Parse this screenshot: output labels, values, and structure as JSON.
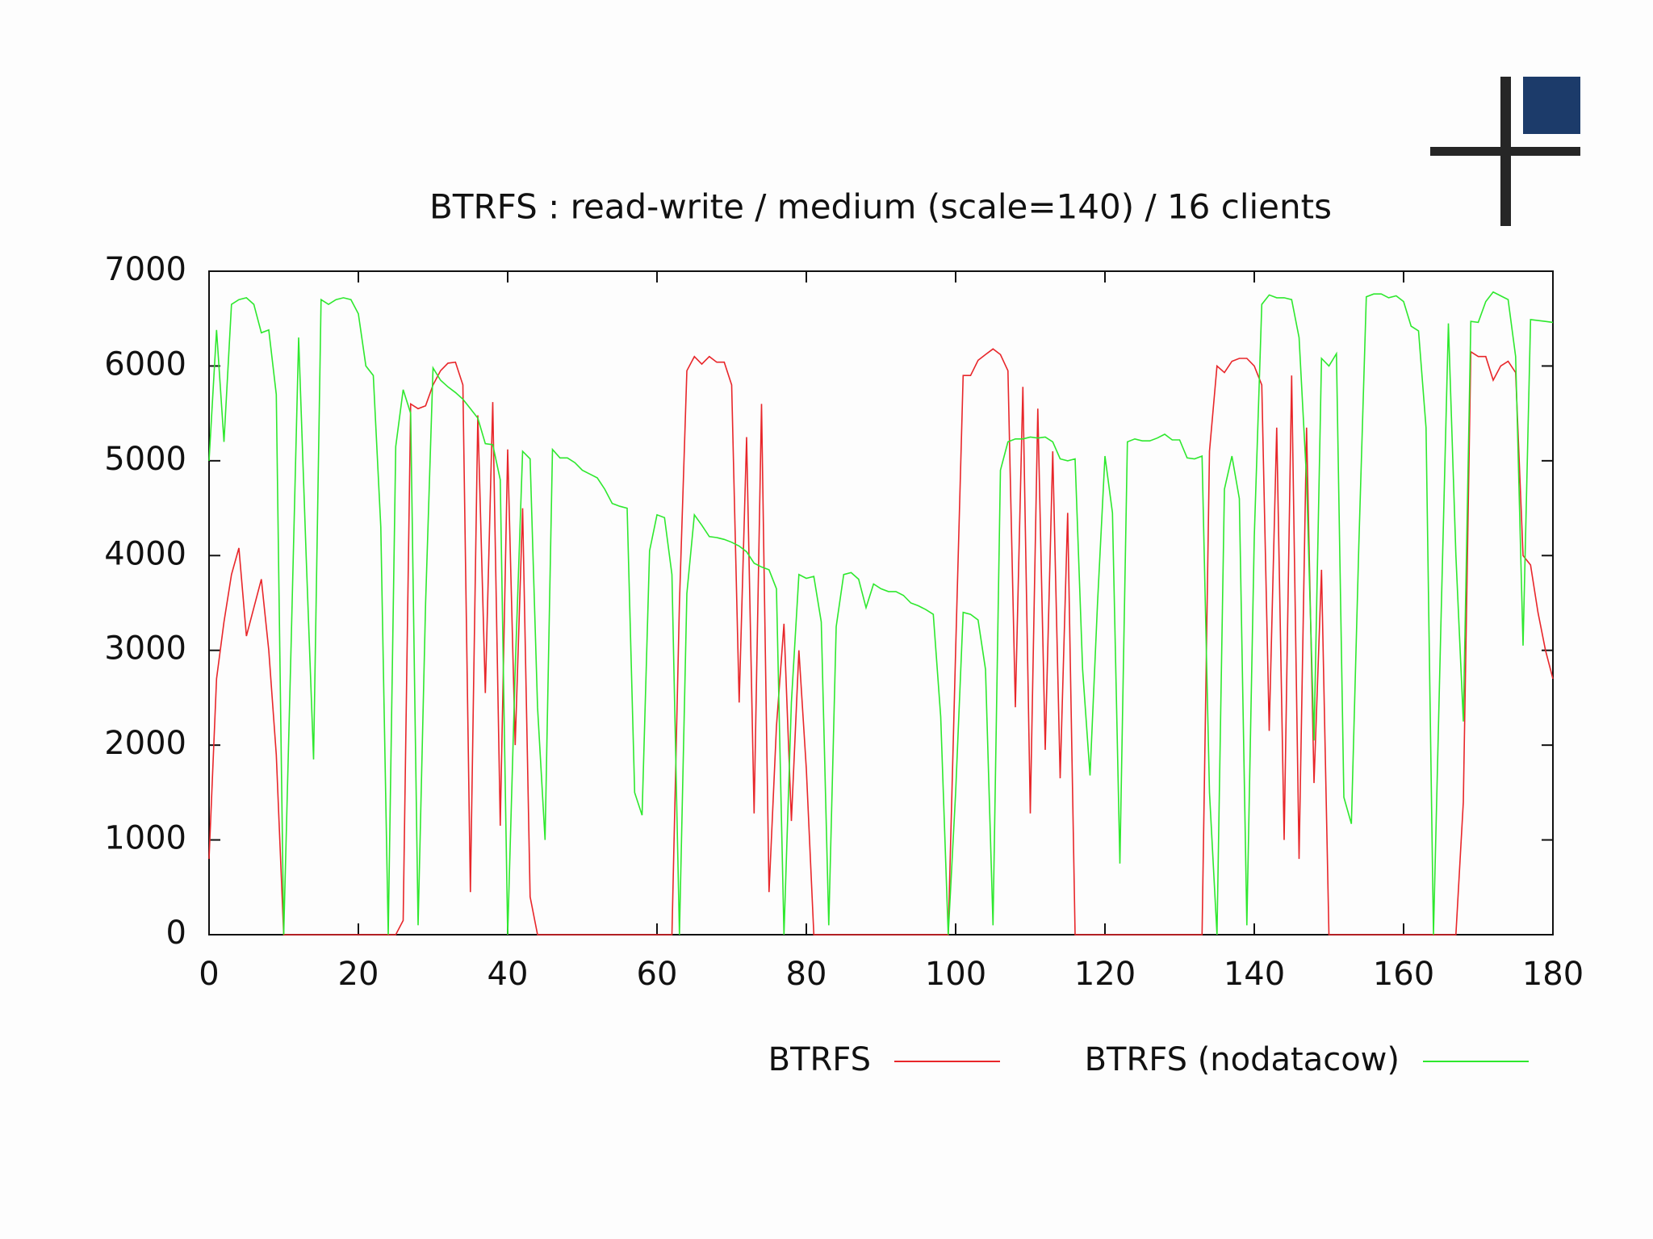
{
  "chart_data": {
    "type": "line",
    "title": "BTRFS : read-write / medium (scale=140) / 16 clients",
    "x": [
      0,
      1,
      2,
      3,
      4,
      5,
      6,
      7,
      8,
      9,
      10,
      11,
      12,
      13,
      14,
      15,
      16,
      17,
      18,
      19,
      20,
      21,
      22,
      23,
      24,
      25,
      26,
      27,
      28,
      29,
      30,
      31,
      32,
      33,
      34,
      35,
      36,
      37,
      38,
      39,
      40,
      41,
      42,
      43,
      44,
      45,
      46,
      47,
      48,
      49,
      50,
      51,
      52,
      53,
      54,
      55,
      56,
      57,
      58,
      59,
      60,
      61,
      62,
      63,
      64,
      65,
      66,
      67,
      68,
      69,
      70,
      71,
      72,
      73,
      74,
      75,
      76,
      77,
      78,
      79,
      80,
      81,
      82,
      83,
      84,
      85,
      86,
      87,
      88,
      89,
      90,
      91,
      92,
      93,
      94,
      95,
      96,
      97,
      98,
      99,
      100,
      101,
      102,
      103,
      104,
      105,
      106,
      107,
      108,
      109,
      110,
      111,
      112,
      113,
      114,
      115,
      116,
      117,
      118,
      119,
      120,
      121,
      122,
      123,
      124,
      125,
      126,
      127,
      128,
      129,
      130,
      131,
      132,
      133,
      134,
      135,
      136,
      137,
      138,
      139,
      140,
      141,
      142,
      143,
      144,
      145,
      146,
      147,
      148,
      149,
      150,
      151,
      152,
      153,
      154,
      155,
      156,
      157,
      158,
      159,
      160,
      161,
      162,
      163,
      164,
      165,
      166,
      167,
      168,
      169,
      170,
      171,
      172,
      173,
      174,
      175,
      176,
      177,
      178,
      179,
      180
    ],
    "series": [
      {
        "name": "BTRFS",
        "color": "#e8262a",
        "values": [
          800,
          2700,
          3300,
          3800,
          4080,
          3150,
          3450,
          3750,
          3000,
          1900,
          0,
          0,
          0,
          0,
          0,
          0,
          0,
          0,
          0,
          0,
          0,
          0,
          0,
          0,
          0,
          0,
          150,
          5600,
          5550,
          5580,
          5800,
          5950,
          6030,
          6040,
          5800,
          450,
          5480,
          2550,
          5620,
          1150,
          5120,
          2000,
          4500,
          400,
          0,
          0,
          0,
          0,
          0,
          0,
          0,
          0,
          0,
          0,
          0,
          0,
          0,
          0,
          0,
          0,
          0,
          0,
          0,
          3500,
          5950,
          6100,
          6020,
          6100,
          6040,
          6040,
          5800,
          2450,
          5250,
          1280,
          5600,
          450,
          2200,
          3280,
          1200,
          3000,
          1750,
          0,
          0,
          0,
          0,
          0,
          0,
          0,
          0,
          0,
          0,
          0,
          0,
          0,
          0,
          0,
          0,
          0,
          0,
          0,
          3000,
          5900,
          5900,
          6060,
          6120,
          6180,
          6120,
          5950,
          2400,
          5780,
          1280,
          5550,
          1950,
          5100,
          1650,
          4450,
          0,
          0,
          0,
          0,
          0,
          0,
          0,
          0,
          0,
          0,
          0,
          0,
          0,
          0,
          0,
          0,
          0,
          0,
          5100,
          6000,
          5930,
          6050,
          6080,
          6080,
          6000,
          5800,
          2150,
          5350,
          1000,
          5900,
          800,
          5350,
          1600,
          3850,
          0,
          0,
          0,
          0,
          0,
          0,
          0,
          0,
          0,
          0,
          0,
          0,
          0,
          0,
          0,
          0,
          0,
          0,
          1400,
          6150,
          6100,
          6100,
          5850,
          6000,
          6050,
          5930,
          4000,
          3900,
          3400,
          3000,
          2700
        ]
      },
      {
        "name": "BTRFS (nodatacow)",
        "color": "#2ee82e",
        "values": [
          5000,
          6380,
          5200,
          6650,
          6700,
          6720,
          6650,
          6350,
          6380,
          5700,
          0,
          3100,
          6300,
          4000,
          1850,
          6700,
          6650,
          6700,
          6720,
          6700,
          6550,
          6000,
          5900,
          4300,
          0,
          5150,
          5750,
          5500,
          100,
          3500,
          5980,
          5850,
          5780,
          5720,
          5650,
          5550,
          5450,
          5180,
          5170,
          4800,
          0,
          2800,
          5100,
          5020,
          2400,
          1000,
          5120,
          5030,
          5030,
          4980,
          4900,
          4860,
          4820,
          4700,
          4550,
          4520,
          4500,
          1500,
          1260,
          4050,
          4430,
          4400,
          3800,
          0,
          3600,
          4430,
          4320,
          4200,
          4190,
          4170,
          4140,
          4100,
          4040,
          3920,
          3880,
          3850,
          3650,
          0,
          2450,
          3800,
          3760,
          3780,
          3300,
          100,
          3250,
          3800,
          3820,
          3750,
          3450,
          3700,
          3650,
          3620,
          3620,
          3580,
          3500,
          3470,
          3430,
          3380,
          2300,
          0,
          1500,
          3400,
          3380,
          3320,
          2800,
          100,
          4900,
          5200,
          5230,
          5230,
          5250,
          5240,
          5250,
          5200,
          5020,
          5000,
          5020,
          2800,
          1680,
          3500,
          5050,
          4450,
          750,
          5200,
          5230,
          5210,
          5210,
          5240,
          5280,
          5220,
          5220,
          5030,
          5020,
          5050,
          1500,
          0,
          4700,
          5050,
          4600,
          100,
          4200,
          6650,
          6750,
          6720,
          6720,
          6700,
          6300,
          4800,
          2050,
          6080,
          6000,
          6130,
          1450,
          1170,
          4100,
          6730,
          6760,
          6760,
          6720,
          6740,
          6680,
          6420,
          6370,
          5350,
          0,
          3300,
          6450,
          4000,
          2250,
          6470,
          6460,
          6680,
          6780,
          6740,
          6700,
          6100,
          3050,
          6490,
          6480,
          6470,
          6460
        ]
      }
    ],
    "xlim": [
      0,
      180
    ],
    "xticks": [
      0,
      20,
      40,
      60,
      80,
      100,
      120,
      140,
      160,
      180
    ],
    "ylim": [
      0,
      7000
    ],
    "yticks": [
      0,
      1000,
      2000,
      3000,
      4000,
      5000,
      6000,
      7000
    ],
    "legend": "bottom-right"
  }
}
